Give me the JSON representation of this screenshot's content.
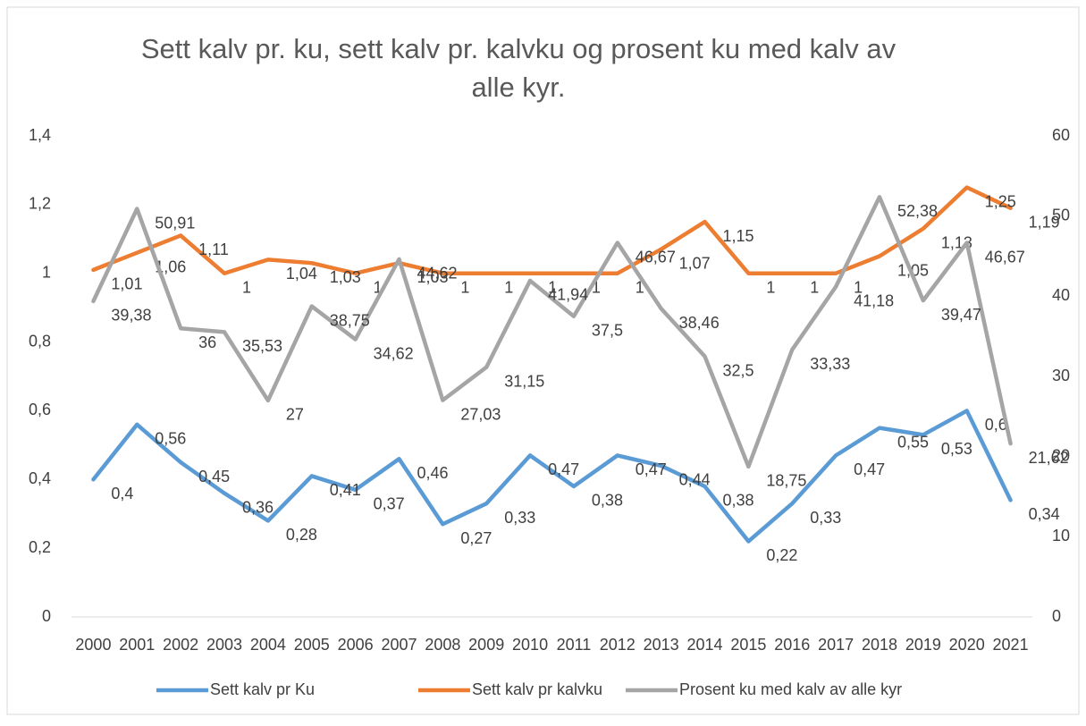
{
  "chart_data": {
    "type": "line",
    "title": "Sett kalv pr. ku, sett kalv pr. kalvku og prosent ku med kalv av alle kyr.",
    "categories": [
      "2000",
      "2001",
      "2002",
      "2003",
      "2004",
      "2005",
      "2006",
      "2007",
      "2008",
      "2009",
      "2010",
      "2011",
      "2012",
      "2013",
      "2014",
      "2015",
      "2016",
      "2017",
      "2018",
      "2019",
      "2020",
      "2021"
    ],
    "series": [
      {
        "name": "Sett kalv pr Ku",
        "color": "#5b9bd5",
        "values": [
          0.4,
          0.56,
          0.45,
          0.36,
          0.28,
          0.41,
          0.37,
          0.46,
          0.27,
          0.33,
          0.47,
          0.38,
          0.47,
          0.44,
          0.38,
          0.22,
          0.33,
          0.47,
          0.55,
          0.53,
          0.6,
          0.34
        ],
        "value_labels": [
          "0,4",
          "0,56",
          "0,45",
          "0,36",
          "0,28",
          "0,41",
          "0,37",
          "0,46",
          "0,27",
          "0,33",
          "0,47",
          "0,38",
          "0,47",
          "0,44",
          "0,38",
          "0,22",
          "0,33",
          "0,47",
          "0,55",
          "0,53",
          "0,6",
          "0,34"
        ]
      },
      {
        "name": "Sett kalv pr kalvku",
        "color": "#ed7d31",
        "values": [
          1.01,
          1.06,
          1.11,
          1,
          1.04,
          1.03,
          1,
          1.03,
          1,
          1,
          1,
          1,
          1,
          1.07,
          1.15,
          1,
          1,
          1,
          1.05,
          1.13,
          1.25,
          1.19
        ],
        "value_labels": [
          "1,01",
          "1,06",
          "1,11",
          "1",
          "1,04",
          "1,03",
          "1",
          "1,03",
          "1",
          "1",
          "1",
          "1",
          "1",
          "1,07",
          "1,15",
          "1",
          "1",
          "1",
          "1,05",
          "1,13",
          "1,25",
          "1,19"
        ]
      },
      {
        "name": "Prosent ku med kalv av alle kyr",
        "color": "#a5a5a5",
        "axis": "y2",
        "values": [
          39.38,
          50.91,
          36,
          35.53,
          27,
          38.75,
          34.62,
          44.62,
          27.03,
          31.15,
          41.94,
          37.5,
          46.67,
          38.46,
          32.5,
          18.75,
          33.33,
          41.18,
          52.38,
          39.47,
          46.67,
          21.62
        ],
        "value_labels": [
          "39,38",
          "50,91",
          "36",
          "35,53",
          "27",
          "38,75",
          "34,62",
          "44,62",
          "27,03",
          "31,15",
          "41,94",
          "37,5",
          "46,67",
          "38,46",
          "32,5",
          "18,75",
          "33,33",
          "41,18",
          "52,38",
          "39,47",
          "46,67",
          "21,62"
        ]
      }
    ],
    "ylim": [
      0,
      1.4
    ],
    "yticks": [
      0,
      {
        "value": 0.2,
        "label": "0,2"
      },
      {
        "value": 0.4,
        "label": "0,4"
      },
      {
        "value": 0.6,
        "label": "0,6"
      },
      {
        "value": 0.8,
        "label": "0,8"
      },
      1,
      {
        "value": 1.2,
        "label": "1,2"
      },
      {
        "value": 1.4,
        "label": "1,4"
      }
    ],
    "y2lim": [
      0,
      60
    ],
    "y2ticks": [
      0,
      10,
      20,
      30,
      40,
      50,
      60
    ],
    "legend": "bottom"
  }
}
